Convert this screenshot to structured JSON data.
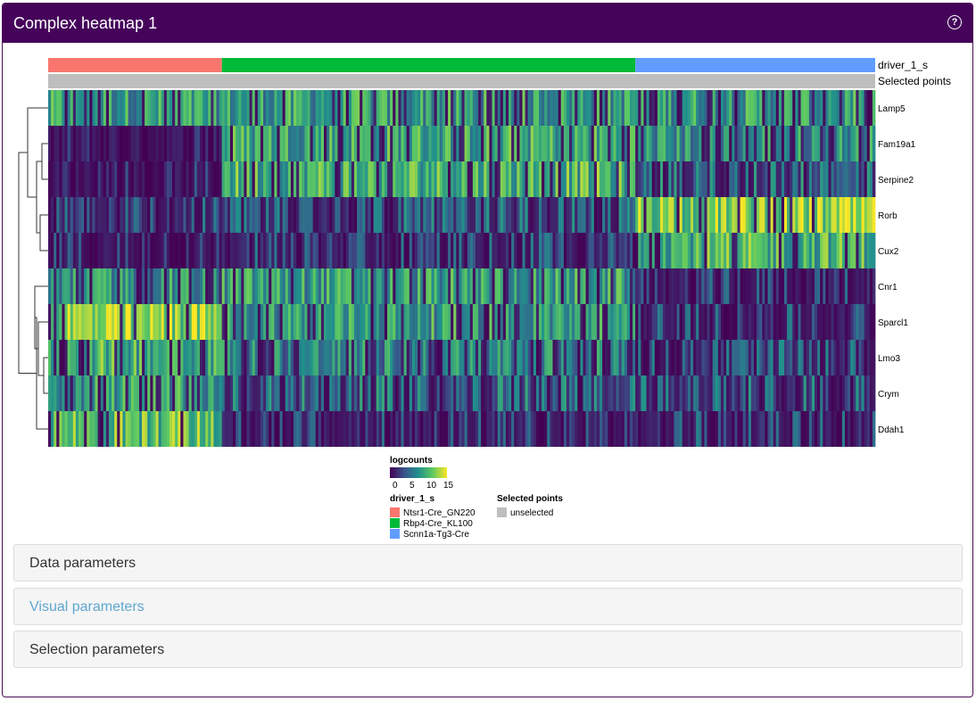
{
  "panel": {
    "title": "Complex heatmap 1",
    "help_icon": "question-circle-icon",
    "header_color": "#45035a"
  },
  "heatmap": {
    "column_annotations": [
      {
        "name": "driver_1_s",
        "segments": [
          {
            "label": "Ntsr1-Cre_GN220",
            "color": "#f8766d",
            "fraction": 0.21
          },
          {
            "label": "Rbp4-Cre_KL100",
            "color": "#00ba38",
            "fraction": 0.5
          },
          {
            "label": "Scnn1a-Tg3-Cre",
            "color": "#619cff",
            "fraction": 0.29
          }
        ]
      },
      {
        "name": "Selected points",
        "segments": [
          {
            "label": "unselected",
            "color": "#bebebe",
            "fraction": 1.0
          }
        ]
      }
    ],
    "genes": [
      "Lamp5",
      "Fam19a1",
      "Serpine2",
      "Rorb",
      "Cux2",
      "Cnr1",
      "Sparcl1",
      "Lmo3",
      "Crym",
      "Ddah1"
    ],
    "gene_means": [
      [
        0.55,
        0.55,
        0.55
      ],
      [
        0.05,
        0.6,
        0.5
      ],
      [
        0.05,
        0.65,
        0.35
      ],
      [
        0.2,
        0.3,
        0.8
      ],
      [
        0.1,
        0.2,
        0.65
      ],
      [
        0.5,
        0.55,
        0.15
      ],
      [
        0.8,
        0.55,
        0.2
      ],
      [
        0.65,
        0.45,
        0.25
      ],
      [
        0.55,
        0.35,
        0.3
      ],
      [
        0.7,
        0.15,
        0.2
      ]
    ],
    "color_scale": [
      "#440154",
      "#3b528b",
      "#21918c",
      "#5ec962",
      "#fde725"
    ],
    "legend": {
      "logcounts_title": "logcounts",
      "logcounts_ticks": [
        "0",
        "5",
        "10",
        "15"
      ],
      "driver_title": "driver_1_s",
      "driver_entries": [
        "Ntsr1-Cre_GN220",
        "Rbp4-Cre_KL100",
        "Scnn1a-Tg3-Cre"
      ],
      "selected_title": "Selected points",
      "selected_entries": [
        "unselected"
      ]
    }
  },
  "accordions": {
    "data": "Data parameters",
    "visual": "Visual parameters",
    "selection": "Selection parameters"
  }
}
